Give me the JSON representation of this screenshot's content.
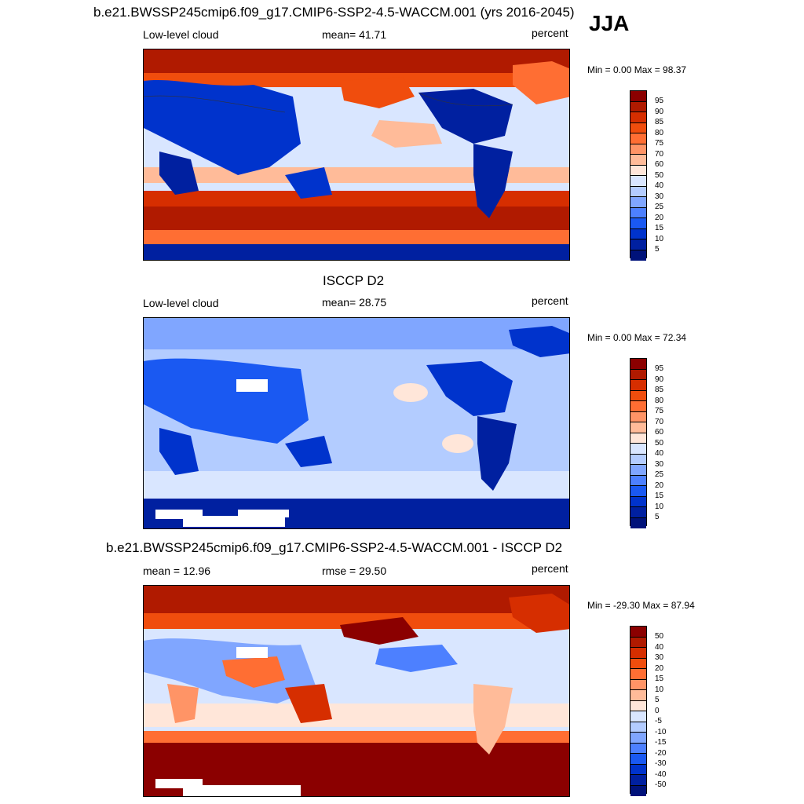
{
  "season": "JJA",
  "panel1": {
    "title": "b.e21.BWSSP245cmip6.f09_g17.CMIP6-SSP2-4.5-WACCM.001 (yrs 2016-2045)",
    "left": "Low-level cloud",
    "center": "mean=  41.71",
    "right": "percent",
    "minmax": "Min =   0.00 Max =  98.37",
    "levels": [
      "95",
      "90",
      "85",
      "80",
      "75",
      "70",
      "60",
      "50",
      "40",
      "30",
      "25",
      "20",
      "15",
      "10",
      "5"
    ],
    "colors": [
      "#8b0000",
      "#b01a00",
      "#d62e00",
      "#f04d0d",
      "#ff6e33",
      "#ff9466",
      "#ffbb99",
      "#ffe6d9",
      "#d9e6ff",
      "#b3ccff",
      "#80a6ff",
      "#4d80ff",
      "#1a59f2",
      "#0033cc",
      "#0020a0",
      "#00127a"
    ]
  },
  "panel2": {
    "title": "ISCCP D2",
    "left": "Low-level cloud",
    "center": "mean=  28.75",
    "right": "percent",
    "minmax": "Min =   0.00 Max =  72.34",
    "levels": [
      "95",
      "90",
      "85",
      "80",
      "75",
      "70",
      "60",
      "50",
      "40",
      "30",
      "25",
      "20",
      "15",
      "10",
      "5"
    ],
    "colors": [
      "#8b0000",
      "#b01a00",
      "#d62e00",
      "#f04d0d",
      "#ff6e33",
      "#ff9466",
      "#ffbb99",
      "#ffe6d9",
      "#d9e6ff",
      "#b3ccff",
      "#80a6ff",
      "#4d80ff",
      "#1a59f2",
      "#0033cc",
      "#0020a0",
      "#00127a"
    ]
  },
  "panel3": {
    "title": "b.e21.BWSSP245cmip6.f09_g17.CMIP6-SSP2-4.5-WACCM.001 - ISCCP D2",
    "left": "mean =  12.96",
    "center": "rmse =  29.50",
    "right": "percent",
    "minmax": "Min = -29.30 Max =  87.94",
    "levels": [
      "50",
      "40",
      "30",
      "20",
      "15",
      "10",
      "5",
      "0",
      "-5",
      "-10",
      "-15",
      "-20",
      "-30",
      "-40",
      "-50"
    ],
    "colors": [
      "#8b0000",
      "#b01a00",
      "#d62e00",
      "#f04d0d",
      "#ff6e33",
      "#ff9466",
      "#ffbb99",
      "#ffe6d9",
      "#d9e6ff",
      "#b3ccff",
      "#80a6ff",
      "#4d80ff",
      "#1a59f2",
      "#0033cc",
      "#0020a0",
      "#00127a"
    ]
  }
}
